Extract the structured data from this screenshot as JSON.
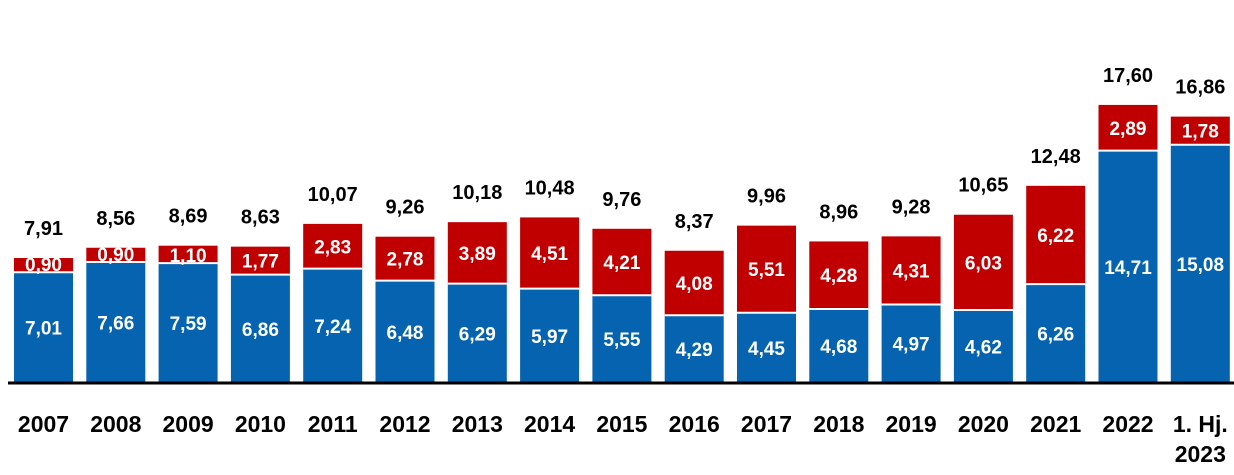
{
  "chart_data": {
    "type": "bar",
    "stacked": true,
    "title": "",
    "xlabel": "",
    "ylabel": "",
    "categories": [
      "2007",
      "2008",
      "2009",
      "2010",
      "2011",
      "2012",
      "2013",
      "2014",
      "2015",
      "2016",
      "2017",
      "2018",
      "2019",
      "2020",
      "2021",
      "2022",
      "1. Hj. 2023"
    ],
    "category_lines": [
      [
        "2007"
      ],
      [
        "2008"
      ],
      [
        "2009"
      ],
      [
        "2010"
      ],
      [
        "2011"
      ],
      [
        "2012"
      ],
      [
        "2013"
      ],
      [
        "2014"
      ],
      [
        "2015"
      ],
      [
        "2016"
      ],
      [
        "2017"
      ],
      [
        "2018"
      ],
      [
        "2019"
      ],
      [
        "2020"
      ],
      [
        "2021"
      ],
      [
        "2022"
      ],
      [
        "1. Hj.",
        "2023"
      ]
    ],
    "series": [
      {
        "color": "#0563b0",
        "values": [
          7.01,
          7.66,
          7.59,
          6.86,
          7.24,
          6.48,
          6.29,
          5.97,
          5.55,
          4.29,
          4.45,
          4.68,
          4.97,
          4.62,
          6.26,
          14.71,
          15.08
        ],
        "labels": [
          "7,01",
          "7,66",
          "7,59",
          "6,86",
          "7,24",
          "6,48",
          "6,29",
          "5,97",
          "5,55",
          "4,29",
          "4,45",
          "4,68",
          "4,97",
          "4,62",
          "6,26",
          "14,71",
          "15,08"
        ]
      },
      {
        "color": "#c00000",
        "values": [
          0.9,
          0.9,
          1.1,
          1.77,
          2.83,
          2.78,
          3.89,
          4.51,
          4.21,
          4.08,
          5.51,
          4.28,
          4.31,
          6.03,
          6.22,
          2.89,
          1.78
        ],
        "labels": [
          "0,90",
          "0,90",
          "1,10",
          "1,77",
          "2,83",
          "2,78",
          "3,89",
          "4,51",
          "4,21",
          "4,08",
          "5,51",
          "4,28",
          "4,31",
          "6,03",
          "6,22",
          "2,89",
          "1,78"
        ]
      }
    ],
    "totals": [
      7.91,
      8.56,
      8.69,
      8.63,
      10.07,
      9.26,
      10.18,
      10.48,
      9.76,
      8.37,
      9.96,
      8.96,
      9.28,
      10.65,
      12.48,
      17.6,
      16.86
    ],
    "total_labels": [
      "7,91",
      "8,56",
      "8,69",
      "8,63",
      "10,07",
      "9,26",
      "10,18",
      "10,48",
      "9,76",
      "8,37",
      "9,96",
      "8,96",
      "9,28",
      "10,65",
      "12,48",
      "17,60",
      "16,86"
    ],
    "ylim": [
      0,
      17.6
    ],
    "grid": false,
    "legend": "none"
  }
}
